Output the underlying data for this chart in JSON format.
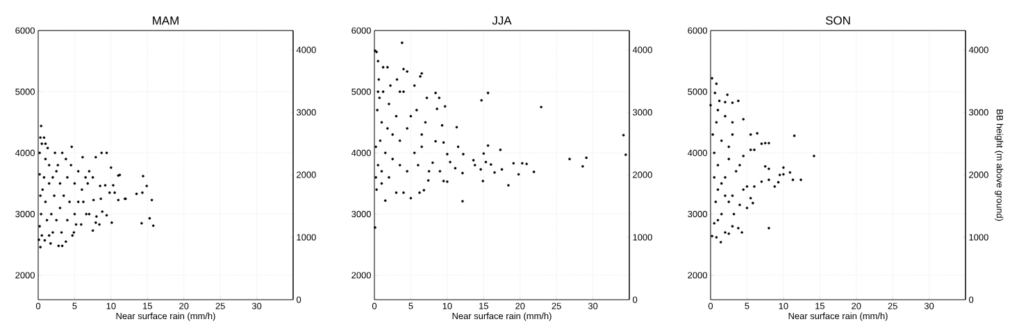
{
  "chart_data": [
    {
      "type": "scatter",
      "title": "MAM",
      "xlabel": "Near surface rain (mm/h)",
      "xlim": [
        0,
        35
      ],
      "xticks": [
        0,
        5,
        10,
        15,
        20,
        25,
        30
      ],
      "ylim": [
        1600,
        6000
      ],
      "yticks": [
        2000,
        3000,
        4000,
        5000,
        6000
      ],
      "y2lim": [
        0,
        4310
      ],
      "y2ticks": [
        0,
        1000,
        2000,
        3000,
        4000
      ],
      "grid": true,
      "marker": "circle",
      "color": "#000000",
      "x": [
        0.4,
        0.3,
        0.8,
        0.5,
        1.0,
        0.2,
        1.3,
        2.3,
        3.3,
        4.6,
        8.7,
        9.4,
        7.9,
        6.1,
        10.0,
        11.0,
        11.2,
        14.4,
        14.9,
        15.6,
        14.3,
        13.5,
        11.9,
        11.0,
        10.5,
        9.8,
        10.3,
        9.2,
        8.5,
        8.6,
        7.6,
        8.0,
        8.8,
        9.4,
        10.1,
        8.4,
        7.9,
        7.5,
        7.0,
        6.6,
        5.9,
        5.2,
        4.9,
        4.7,
        3.8,
        3.3,
        2.8,
        1.7,
        0.9,
        0.3,
        0.1,
        0.2,
        0.4,
        1.0,
        0.6,
        1.5,
        2.0,
        2.5,
        3.0,
        3.5,
        4.0,
        4.5,
        5.0,
        5.5,
        6.0,
        6.5,
        7.0,
        6.8,
        7.5,
        1.2,
        2.0,
        2.5,
        3.0,
        1.5,
        0.8,
        0.3,
        1.8,
        2.2,
        3.8,
        4.3,
        5.5,
        14.2,
        15.3,
        15.8,
        12.0,
        0.2,
        1.0,
        2.7,
        3.2,
        4.0,
        5.0,
        6.2,
        0.5,
        1.5
      ],
      "values": [
        4440,
        4250,
        4250,
        4150,
        4150,
        4000,
        4080,
        4000,
        4000,
        4100,
        4000,
        4000,
        3930,
        3930,
        3760,
        3630,
        3640,
        3620,
        3460,
        3230,
        3350,
        3330,
        3250,
        3230,
        3350,
        3350,
        3470,
        3470,
        3460,
        3250,
        3230,
        2960,
        3040,
        2980,
        2860,
        2830,
        2860,
        2730,
        3000,
        3000,
        2830,
        2830,
        2700,
        2650,
        2550,
        2480,
        2480,
        2520,
        2570,
        2460,
        2580,
        2800,
        3000,
        3200,
        3400,
        3500,
        3600,
        3700,
        3500,
        3300,
        3600,
        3800,
        3500,
        3700,
        3400,
        3600,
        3700,
        3500,
        3600,
        2900,
        2700,
        2900,
        3100,
        3800,
        3600,
        3300,
        3000,
        3300,
        3900,
        3200,
        3200,
        2850,
        2930,
        2810,
        3250,
        3650,
        3900,
        3800,
        2700,
        2900,
        3000,
        3200,
        2650,
        2650
      ]
    },
    {
      "type": "scatter",
      "title": "JJA",
      "xlabel": "Near surface rain (mm/h)",
      "xlim": [
        0,
        35
      ],
      "xticks": [
        0,
        5,
        10,
        15,
        20,
        25,
        30
      ],
      "ylim": [
        1600,
        6000
      ],
      "yticks": [
        2000,
        3000,
        4000,
        5000,
        6000
      ],
      "y2lim": [
        0,
        4310
      ],
      "y2ticks": [
        0,
        1000,
        2000,
        3000,
        4000
      ],
      "grid": true,
      "marker": "circle",
      "color": "#000000",
      "x": [
        3.8,
        0.1,
        0.3,
        0.5,
        1.2,
        1.8,
        4.0,
        4.5,
        6.5,
        6.3,
        3.1,
        5.5,
        4.0,
        8.4,
        15.6,
        8.9,
        14.7,
        9.7,
        22.9,
        8.6,
        9.3,
        11.3,
        8.4,
        9.5,
        11.5,
        15.6,
        17.3,
        34.2,
        34.5,
        29.1,
        26.8,
        28.6,
        21.9,
        20.9,
        20.3,
        19.1,
        19.8,
        18.4,
        17.5,
        16.5,
        16.0,
        15.3,
        15.0,
        14.6,
        14.9,
        13.6,
        13.8,
        12.2,
        12.1,
        12.1,
        11.1,
        10.4,
        10.0,
        9.5,
        10.0,
        9.0,
        8.0,
        7.4,
        6.8,
        6.2,
        5.0,
        4.0,
        3.0,
        1.5,
        0.1,
        0.3,
        1.0,
        2.0,
        0.5,
        1.5,
        0.8,
        2.5,
        1.0,
        0.4,
        2.0,
        1.2,
        0.6,
        3.0,
        3.5,
        4.5,
        5.0,
        5.5,
        6.0,
        6.5,
        7.0,
        7.2,
        3.5,
        4.5,
        2.5,
        1.8,
        0.2,
        0.2,
        0.5,
        2.2,
        3.5,
        5.8,
        6.5,
        7.5,
        1.0,
        0.7
      ],
      "values": [
        5800,
        5670,
        5650,
        5500,
        5400,
        5400,
        5370,
        5330,
        5300,
        5250,
        5200,
        5100,
        5000,
        4980,
        4980,
        4900,
        4860,
        4760,
        4750,
        4720,
        4450,
        4420,
        4190,
        4170,
        4100,
        4120,
        4050,
        4290,
        3970,
        3920,
        3900,
        3780,
        3690,
        3820,
        3830,
        3830,
        3650,
        3470,
        3730,
        3680,
        3810,
        3850,
        3990,
        3730,
        3540,
        3880,
        3800,
        3980,
        3670,
        3210,
        3750,
        3850,
        3530,
        3540,
        3980,
        3700,
        3840,
        3550,
        3390,
        3350,
        3260,
        3350,
        3350,
        3220,
        2780,
        3400,
        3500,
        3600,
        3800,
        4000,
        4200,
        4300,
        4500,
        4700,
        4800,
        5000,
        5200,
        4600,
        4200,
        4400,
        4600,
        4000,
        3800,
        4100,
        4500,
        4900,
        3800,
        3700,
        3900,
        4400,
        4100,
        3600,
        5000,
        5100,
        5000,
        4700,
        4300,
        3700,
        3700,
        4900
      ]
    },
    {
      "type": "scatter",
      "title": "SON",
      "xlabel": "Near surface rain (mm/h)",
      "y2label": "BB height (m above ground)",
      "xlim": [
        0,
        35
      ],
      "xticks": [
        0,
        5,
        10,
        15,
        20,
        25,
        30
      ],
      "ylim": [
        1600,
        6000
      ],
      "yticks": [
        2000,
        3000,
        4000,
        5000,
        6000
      ],
      "y2lim": [
        0,
        4310
      ],
      "y2ticks": [
        0,
        1000,
        2000,
        3000,
        4000
      ],
      "grid": true,
      "marker": "circle",
      "color": "#000000",
      "x": [
        0.2,
        0.8,
        0.6,
        0.0,
        2.3,
        3.8,
        2.0,
        4.5,
        6.4,
        5.5,
        11.5,
        8.0,
        7.5,
        7.0,
        6.0,
        5.5,
        14.2,
        10.0,
        7.5,
        8.0,
        9.5,
        10.0,
        10.9,
        11.3,
        12.4,
        9.3,
        8.8,
        8.0,
        7.0,
        6.0,
        5.0,
        4.5,
        5.5,
        5.0,
        5.8,
        4.0,
        3.2,
        3.0,
        3.8,
        4.3,
        8.0,
        2.5,
        2.0,
        1.4,
        0.8,
        0.2,
        0.5,
        1.0,
        1.5,
        0.7,
        2.0,
        1.0,
        3.0,
        0.5,
        2.0,
        3.5,
        1.0,
        0.5,
        2.5,
        4.0,
        1.5,
        3.0,
        0.8,
        2.0,
        1.0,
        3.0,
        2.5,
        4.5,
        1.5,
        2.5,
        0.3,
        1.2,
        3.0
      ],
      "values": [
        5220,
        5130,
        4980,
        4780,
        4950,
        4850,
        4830,
        4550,
        4320,
        4300,
        4280,
        4160,
        4160,
        4150,
        4050,
        4050,
        3950,
        3760,
        3780,
        3740,
        3640,
        3650,
        3680,
        3560,
        3560,
        3520,
        3450,
        3560,
        3530,
        3450,
        3450,
        3400,
        3260,
        3100,
        3180,
        3150,
        3000,
        2800,
        2770,
        2700,
        2770,
        2680,
        2700,
        2540,
        2620,
        2640,
        2850,
        2900,
        3000,
        3200,
        3300,
        3400,
        3300,
        3600,
        3600,
        3700,
        3800,
        4000,
        3900,
        3800,
        4200,
        4300,
        4500,
        4600,
        4700,
        4500,
        4100,
        3950,
        3500,
        3200,
        4300,
        4850,
        4820
      ]
    }
  ]
}
